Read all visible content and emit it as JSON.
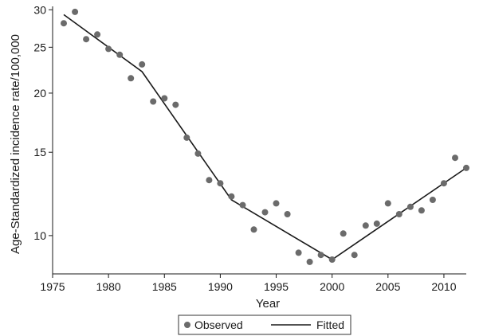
{
  "chart_data": {
    "type": "scatter",
    "title": "",
    "xlabel": "Year",
    "ylabel": "Age-Standardized incidence rate/100,000",
    "y_scale": "log",
    "xlim": [
      1975,
      2012
    ],
    "ylim": [
      8.3,
      30.5
    ],
    "x_ticks": [
      1975,
      1980,
      1985,
      1990,
      1995,
      2000,
      2005,
      2010
    ],
    "y_ticks": [
      10,
      15,
      20,
      25,
      30
    ],
    "grid": false,
    "legend_position": "bottom",
    "series": [
      {
        "name": "Observed",
        "kind": "markers",
        "color": "#6b6b6b",
        "x": [
          1976,
          1977,
          1978,
          1979,
          1980,
          1981,
          1982,
          1983,
          1984,
          1985,
          1986,
          1987,
          1988,
          1989,
          1990,
          1991,
          1992,
          1993,
          1994,
          1995,
          1996,
          1997,
          1998,
          1999,
          2000,
          2001,
          2002,
          2003,
          2004,
          2005,
          2006,
          2007,
          2008,
          2009,
          2010,
          2011,
          2012
        ],
        "y": [
          28.1,
          29.7,
          26.0,
          26.6,
          24.8,
          24.1,
          21.5,
          23.0,
          19.2,
          19.5,
          18.9,
          16.1,
          14.9,
          13.1,
          12.9,
          12.1,
          11.6,
          10.3,
          11.2,
          11.7,
          11.1,
          9.2,
          8.8,
          9.1,
          8.9,
          10.1,
          9.1,
          10.5,
          10.6,
          11.7,
          11.1,
          11.5,
          11.3,
          11.9,
          12.9,
          14.6,
          13.9
        ]
      },
      {
        "name": "Fitted",
        "kind": "line",
        "color": "#1a1a1a",
        "x": [
          1976,
          1983,
          1991,
          2000,
          2012
        ],
        "y": [
          29.3,
          22.2,
          11.9,
          8.9,
          13.9
        ]
      }
    ]
  }
}
